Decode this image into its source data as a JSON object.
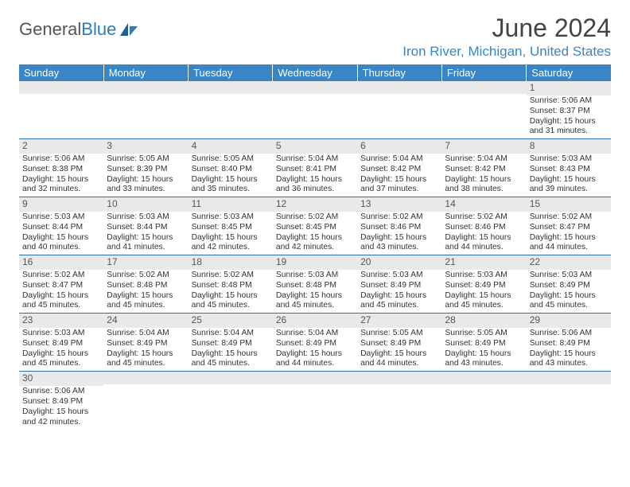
{
  "logo": {
    "part1": "General",
    "part2": "Blue"
  },
  "title": "June 2024",
  "location": "Iron River, Michigan, United States",
  "colors": {
    "header_bg": "#3a85c6",
    "header_text": "#ffffff",
    "daynum_bg": "#e9e9e9",
    "row_border": "#2f6fa8",
    "title_color": "#444444",
    "location_color": "#3a85c6",
    "body_text": "#333333"
  },
  "weekdays": [
    "Sunday",
    "Monday",
    "Tuesday",
    "Wednesday",
    "Thursday",
    "Friday",
    "Saturday"
  ],
  "weeks": [
    [
      {
        "n": "",
        "sr": "",
        "ss": "",
        "dl": ""
      },
      {
        "n": "",
        "sr": "",
        "ss": "",
        "dl": ""
      },
      {
        "n": "",
        "sr": "",
        "ss": "",
        "dl": ""
      },
      {
        "n": "",
        "sr": "",
        "ss": "",
        "dl": ""
      },
      {
        "n": "",
        "sr": "",
        "ss": "",
        "dl": ""
      },
      {
        "n": "",
        "sr": "",
        "ss": "",
        "dl": ""
      },
      {
        "n": "1",
        "sr": "Sunrise: 5:06 AM",
        "ss": "Sunset: 8:37 PM",
        "dl": "Daylight: 15 hours and 31 minutes."
      }
    ],
    [
      {
        "n": "2",
        "sr": "Sunrise: 5:06 AM",
        "ss": "Sunset: 8:38 PM",
        "dl": "Daylight: 15 hours and 32 minutes."
      },
      {
        "n": "3",
        "sr": "Sunrise: 5:05 AM",
        "ss": "Sunset: 8:39 PM",
        "dl": "Daylight: 15 hours and 33 minutes."
      },
      {
        "n": "4",
        "sr": "Sunrise: 5:05 AM",
        "ss": "Sunset: 8:40 PM",
        "dl": "Daylight: 15 hours and 35 minutes."
      },
      {
        "n": "5",
        "sr": "Sunrise: 5:04 AM",
        "ss": "Sunset: 8:41 PM",
        "dl": "Daylight: 15 hours and 36 minutes."
      },
      {
        "n": "6",
        "sr": "Sunrise: 5:04 AM",
        "ss": "Sunset: 8:42 PM",
        "dl": "Daylight: 15 hours and 37 minutes."
      },
      {
        "n": "7",
        "sr": "Sunrise: 5:04 AM",
        "ss": "Sunset: 8:42 PM",
        "dl": "Daylight: 15 hours and 38 minutes."
      },
      {
        "n": "8",
        "sr": "Sunrise: 5:03 AM",
        "ss": "Sunset: 8:43 PM",
        "dl": "Daylight: 15 hours and 39 minutes."
      }
    ],
    [
      {
        "n": "9",
        "sr": "Sunrise: 5:03 AM",
        "ss": "Sunset: 8:44 PM",
        "dl": "Daylight: 15 hours and 40 minutes."
      },
      {
        "n": "10",
        "sr": "Sunrise: 5:03 AM",
        "ss": "Sunset: 8:44 PM",
        "dl": "Daylight: 15 hours and 41 minutes."
      },
      {
        "n": "11",
        "sr": "Sunrise: 5:03 AM",
        "ss": "Sunset: 8:45 PM",
        "dl": "Daylight: 15 hours and 42 minutes."
      },
      {
        "n": "12",
        "sr": "Sunrise: 5:02 AM",
        "ss": "Sunset: 8:45 PM",
        "dl": "Daylight: 15 hours and 42 minutes."
      },
      {
        "n": "13",
        "sr": "Sunrise: 5:02 AM",
        "ss": "Sunset: 8:46 PM",
        "dl": "Daylight: 15 hours and 43 minutes."
      },
      {
        "n": "14",
        "sr": "Sunrise: 5:02 AM",
        "ss": "Sunset: 8:46 PM",
        "dl": "Daylight: 15 hours and 44 minutes."
      },
      {
        "n": "15",
        "sr": "Sunrise: 5:02 AM",
        "ss": "Sunset: 8:47 PM",
        "dl": "Daylight: 15 hours and 44 minutes."
      }
    ],
    [
      {
        "n": "16",
        "sr": "Sunrise: 5:02 AM",
        "ss": "Sunset: 8:47 PM",
        "dl": "Daylight: 15 hours and 45 minutes."
      },
      {
        "n": "17",
        "sr": "Sunrise: 5:02 AM",
        "ss": "Sunset: 8:48 PM",
        "dl": "Daylight: 15 hours and 45 minutes."
      },
      {
        "n": "18",
        "sr": "Sunrise: 5:02 AM",
        "ss": "Sunset: 8:48 PM",
        "dl": "Daylight: 15 hours and 45 minutes."
      },
      {
        "n": "19",
        "sr": "Sunrise: 5:03 AM",
        "ss": "Sunset: 8:48 PM",
        "dl": "Daylight: 15 hours and 45 minutes."
      },
      {
        "n": "20",
        "sr": "Sunrise: 5:03 AM",
        "ss": "Sunset: 8:49 PM",
        "dl": "Daylight: 15 hours and 45 minutes."
      },
      {
        "n": "21",
        "sr": "Sunrise: 5:03 AM",
        "ss": "Sunset: 8:49 PM",
        "dl": "Daylight: 15 hours and 45 minutes."
      },
      {
        "n": "22",
        "sr": "Sunrise: 5:03 AM",
        "ss": "Sunset: 8:49 PM",
        "dl": "Daylight: 15 hours and 45 minutes."
      }
    ],
    [
      {
        "n": "23",
        "sr": "Sunrise: 5:03 AM",
        "ss": "Sunset: 8:49 PM",
        "dl": "Daylight: 15 hours and 45 minutes."
      },
      {
        "n": "24",
        "sr": "Sunrise: 5:04 AM",
        "ss": "Sunset: 8:49 PM",
        "dl": "Daylight: 15 hours and 45 minutes."
      },
      {
        "n": "25",
        "sr": "Sunrise: 5:04 AM",
        "ss": "Sunset: 8:49 PM",
        "dl": "Daylight: 15 hours and 45 minutes."
      },
      {
        "n": "26",
        "sr": "Sunrise: 5:04 AM",
        "ss": "Sunset: 8:49 PM",
        "dl": "Daylight: 15 hours and 44 minutes."
      },
      {
        "n": "27",
        "sr": "Sunrise: 5:05 AM",
        "ss": "Sunset: 8:49 PM",
        "dl": "Daylight: 15 hours and 44 minutes."
      },
      {
        "n": "28",
        "sr": "Sunrise: 5:05 AM",
        "ss": "Sunset: 8:49 PM",
        "dl": "Daylight: 15 hours and 43 minutes."
      },
      {
        "n": "29",
        "sr": "Sunrise: 5:06 AM",
        "ss": "Sunset: 8:49 PM",
        "dl": "Daylight: 15 hours and 43 minutes."
      }
    ],
    [
      {
        "n": "30",
        "sr": "Sunrise: 5:06 AM",
        "ss": "Sunset: 8:49 PM",
        "dl": "Daylight: 15 hours and 42 minutes."
      },
      {
        "n": "",
        "sr": "",
        "ss": "",
        "dl": ""
      },
      {
        "n": "",
        "sr": "",
        "ss": "",
        "dl": ""
      },
      {
        "n": "",
        "sr": "",
        "ss": "",
        "dl": ""
      },
      {
        "n": "",
        "sr": "",
        "ss": "",
        "dl": ""
      },
      {
        "n": "",
        "sr": "",
        "ss": "",
        "dl": ""
      },
      {
        "n": "",
        "sr": "",
        "ss": "",
        "dl": ""
      }
    ]
  ]
}
